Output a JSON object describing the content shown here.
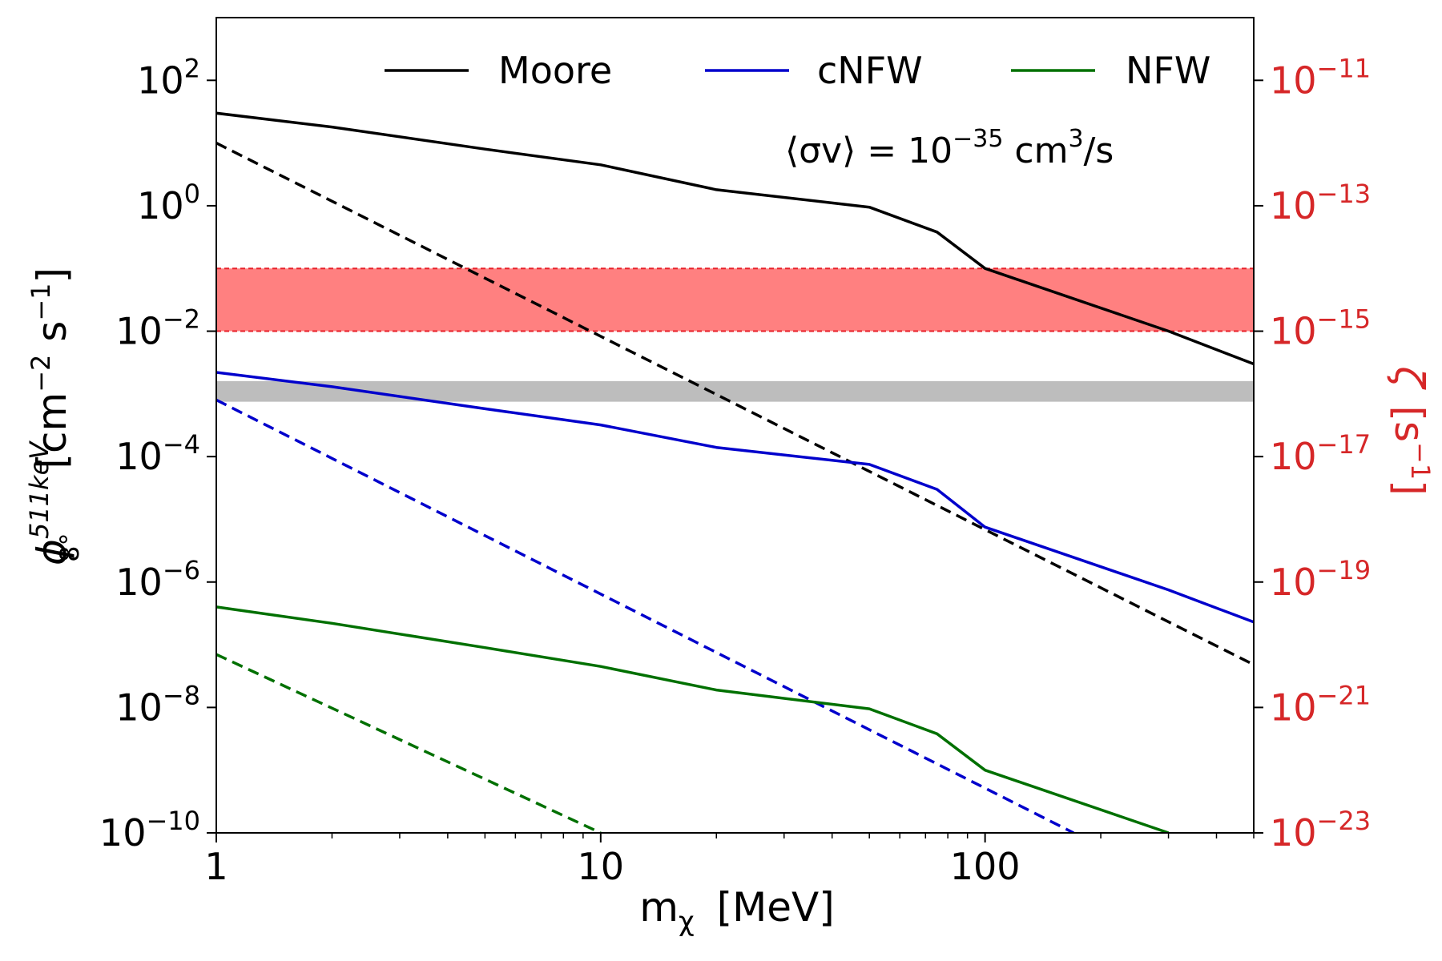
{
  "chart_data": {
    "type": "line",
    "xscale": "log",
    "yscale": "log",
    "xlim": [
      1,
      500
    ],
    "ylim": [
      1e-10,
      1000
    ],
    "y2lim": [
      1e-23,
      1e-10
    ],
    "xlabel_main": "m",
    "xlabel_sub": "χ",
    "xlabel_unit": "[MeV]",
    "ylabel_main": "ϕ",
    "ylabel_sup": "511keV",
    "ylabel_sub": "8°",
    "ylabel_unit_base": "[cm",
    "ylabel_unit_exp1": "−2",
    "ylabel_unit_mid": " s",
    "ylabel_unit_exp2": "−1",
    "ylabel_unit_end": "]",
    "y2label_main": "ζ",
    "y2label_unit_base": "[s",
    "y2label_unit_exp": "−1",
    "y2label_unit_end": "]",
    "y2_color": "#d62728",
    "x_ticks": [
      {
        "value": 1,
        "label": "1"
      },
      {
        "value": 10,
        "label": "10"
      },
      {
        "value": 100,
        "label": "100"
      }
    ],
    "y_ticks": [
      {
        "value": 100,
        "base": "10",
        "exp": "2"
      },
      {
        "value": 1,
        "base": "10",
        "exp": "0"
      },
      {
        "value": 0.01,
        "base": "10",
        "exp": "−2"
      },
      {
        "value": 0.0001,
        "base": "10",
        "exp": "−4"
      },
      {
        "value": 1e-06,
        "base": "10",
        "exp": "−6"
      },
      {
        "value": 1e-08,
        "base": "10",
        "exp": "−8"
      },
      {
        "value": 1e-10,
        "base": "10",
        "exp": "−10"
      }
    ],
    "y2_ticks": [
      {
        "value": 1e-11,
        "base": "10",
        "exp": "−11"
      },
      {
        "value": 1e-13,
        "base": "10",
        "exp": "−13"
      },
      {
        "value": 1e-15,
        "base": "10",
        "exp": "−15"
      },
      {
        "value": 1e-17,
        "base": "10",
        "exp": "−17"
      },
      {
        "value": 1e-19,
        "base": "10",
        "exp": "−19"
      },
      {
        "value": 1e-21,
        "base": "10",
        "exp": "−21"
      },
      {
        "value": 1e-23,
        "base": "10",
        "exp": "−23"
      }
    ],
    "annotation": {
      "prefix": "⟨σv⟩ = 10",
      "exp": "−35",
      "mid": " cm",
      "exp2": "3",
      "suffix": "/s"
    },
    "bands": [
      {
        "y_low": 0.01,
        "y_high": 0.1,
        "fill": "#ff8080",
        "edge": "#e8202a"
      },
      {
        "y_low": 0.00075,
        "y_high": 0.0016,
        "fill": "#bdbdbd",
        "edge": "#9e9e9e"
      }
    ],
    "series": [
      {
        "name": "Moore",
        "color": "#000000",
        "style": "solid",
        "x": [
          1,
          2,
          5,
          10,
          20,
          50,
          75,
          100,
          300,
          500
        ],
        "y": [
          30,
          18,
          8,
          4.5,
          1.8,
          0.95,
          0.38,
          0.1,
          0.01,
          0.003
        ]
      },
      {
        "color": "#000000",
        "style": "dashed",
        "x": [
          1,
          500
        ],
        "y": [
          10,
          4.8e-08
        ]
      },
      {
        "name": "cNFW",
        "color": "#0000cc",
        "style": "solid",
        "x": [
          1,
          2,
          5,
          10,
          20,
          50,
          75,
          100,
          300,
          500
        ],
        "y": [
          0.0022,
          0.0013,
          0.00058,
          0.00032,
          0.00014,
          7.5e-05,
          3e-05,
          7.5e-06,
          7.5e-07,
          2.3e-07
        ]
      },
      {
        "color": "#0000cc",
        "style": "dashed",
        "x": [
          1,
          170
        ],
        "y": [
          0.0008,
          1e-10
        ]
      },
      {
        "name": "NFW",
        "color": "#007000",
        "style": "solid",
        "x": [
          1,
          2,
          5,
          10,
          20,
          50,
          75,
          100,
          300
        ],
        "y": [
          4e-07,
          2.2e-07,
          9e-08,
          4.5e-08,
          1.9e-08,
          9.5e-09,
          3.8e-09,
          1e-09,
          1e-10
        ]
      },
      {
        "color": "#007000",
        "style": "dashed",
        "x": [
          1,
          10
        ],
        "y": [
          7e-08,
          1e-10
        ]
      }
    ],
    "legend_placement": "top"
  }
}
